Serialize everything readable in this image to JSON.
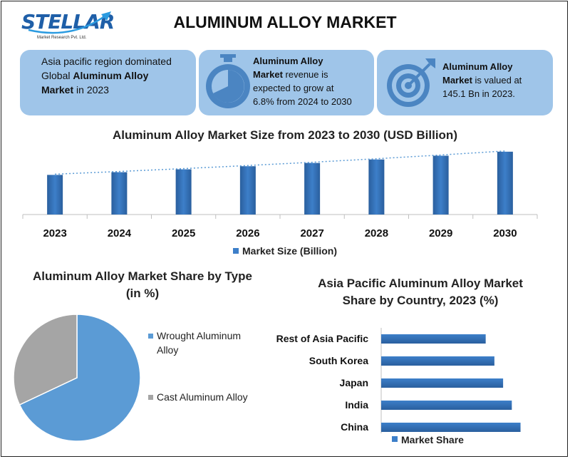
{
  "header": {
    "logo_text": "STELLAR",
    "logo_subtitle": "Market Research Pvt. Ltd.",
    "title": "ALUMINUM ALLOY MARKET"
  },
  "cards": {
    "card1": {
      "line1": "Asia pacific region dominated",
      "line2_pre": "Global ",
      "line2_bold": "Aluminum Alloy",
      "line3_bold": "Market",
      "line3_post": " in 2023"
    },
    "card2": {
      "bold1": "Aluminum Alloy",
      "bold2": "Market",
      "text1": " revenue is",
      "text2": "expected to grow at",
      "text3": "6.8% from 2024 to 2030",
      "icon": "stopwatch-icon"
    },
    "card3": {
      "bold1": "Aluminum Alloy",
      "bold2": "Market",
      "text1": " is valued at",
      "text2": "145.1 Bn in 2023.",
      "icon": "target-icon"
    }
  },
  "colors": {
    "bar": "#3d7fc9",
    "bar_dark": "#2a5f9e",
    "card_bg": "#9fc5e9",
    "pie_wrought": "#5b9bd5",
    "pie_cast": "#a5a5a5",
    "trend": "#5b9bd5"
  },
  "chart_data": [
    {
      "type": "bar",
      "title": "Aluminum Alloy Market Size from 2023 to 2030 (USD Billion)",
      "categories": [
        "2023",
        "2024",
        "2025",
        "2026",
        "2027",
        "2028",
        "2029",
        "2030"
      ],
      "series": [
        {
          "name": "Market Size (Billion)",
          "values": [
            145.1,
            155,
            165.5,
            176.8,
            188.8,
            201.6,
            215.3,
            230
          ]
        }
      ],
      "ylim": [
        0,
        240
      ],
      "trendline": true,
      "legend": "bottom"
    },
    {
      "type": "pie",
      "title": "Aluminum Alloy Market Share by Type (in %)",
      "labels": [
        "Wrought Aluminum Alloy",
        "Cast Aluminum Alloy"
      ],
      "values": [
        68,
        32
      ],
      "legend": "right"
    },
    {
      "type": "bar",
      "orientation": "horizontal",
      "title": "Asia Pacific Aluminum Alloy Market Share by Country, 2023 (%)",
      "categories": [
        "Rest of Asia Pacific",
        "South Korea",
        "Japan",
        "India",
        "China"
      ],
      "series": [
        {
          "name": "Market Share",
          "values": [
            30,
            32.5,
            35,
            37.5,
            40
          ]
        }
      ],
      "xlim": [
        0,
        45
      ],
      "legend": "bottom"
    }
  ]
}
